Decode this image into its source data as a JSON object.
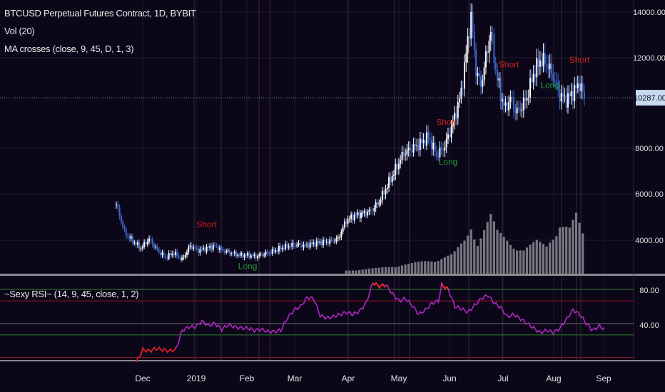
{
  "header": {
    "symbol_line": "BTCUSD Perpetual Futures Contract, 1D, BYBIT",
    "vol_line": "Vol (20)",
    "ma_line": "MA crosses (close, 9, 45, D, 1, 3)"
  },
  "rsi_header": {
    "label": "~Sexy RSI~ (14, 9, 45, close, 1, 2)"
  },
  "colors": {
    "background": "#0c0718",
    "grid": "#1e1a2c",
    "candle_up": "#ffffff",
    "candle_down": "#3b67c9",
    "volume": "#8c8a93",
    "short_signal": "#d21e1e",
    "long_signal": "#1f9a39",
    "rsi_line": "#b026c2",
    "rsi_hot": "#ff2a2a",
    "rsi_cold": "#d21e1e",
    "level_green": "#2c7a2c",
    "level_red": "#9a1822",
    "price_tag": "#c7daf0"
  },
  "chart_data": [
    {
      "type": "candlestick",
      "title": "BTCUSD Perpetual Futures Contract, 1D, BYBIT",
      "x_ticks": [
        "Dec",
        "2019",
        "Feb",
        "Mar",
        "Apr",
        "May",
        "Jun",
        "Jul",
        "Aug",
        "Sep"
      ],
      "y_ticks": [
        "14000.00",
        "12000.00",
        "8000.00",
        "6000.00",
        "4000.00"
      ],
      "last_price_label": "10287.00",
      "last_price": 10287,
      "ylim": [
        2700,
        14500
      ],
      "x_range_days": [
        0,
        297
      ],
      "close_path": [
        [
          0,
          5700
        ],
        [
          5,
          4500
        ],
        [
          10,
          4100
        ],
        [
          15,
          3800
        ],
        [
          20,
          4200
        ],
        [
          25,
          3700
        ],
        [
          30,
          3400
        ],
        [
          35,
          3600
        ],
        [
          40,
          3300
        ],
        [
          45,
          3900
        ],
        [
          50,
          3700
        ],
        [
          55,
          3800
        ],
        [
          60,
          3900
        ],
        [
          65,
          3700
        ],
        [
          70,
          3600
        ],
        [
          75,
          3500
        ],
        [
          80,
          3500
        ],
        [
          85,
          3450
        ],
        [
          90,
          3550
        ],
        [
          95,
          3650
        ],
        [
          100,
          3800
        ],
        [
          105,
          3900
        ],
        [
          110,
          3950
        ],
        [
          115,
          3900
        ],
        [
          120,
          4000
        ],
        [
          125,
          4050
        ],
        [
          130,
          4100
        ],
        [
          135,
          4200
        ],
        [
          140,
          5000
        ],
        [
          145,
          5200
        ],
        [
          150,
          5300
        ],
        [
          155,
          5400
        ],
        [
          160,
          5800
        ],
        [
          165,
          6500
        ],
        [
          170,
          7200
        ],
        [
          175,
          7900
        ],
        [
          180,
          8100
        ],
        [
          185,
          8300
        ],
        [
          190,
          8600
        ],
        [
          195,
          7800
        ],
        [
          200,
          8200
        ],
        [
          205,
          9200
        ],
        [
          210,
          10500
        ],
        [
          213,
          12200
        ],
        [
          216,
          13800
        ],
        [
          219,
          11500
        ],
        [
          222,
          10800
        ],
        [
          225,
          12000
        ],
        [
          228,
          13200
        ],
        [
          231,
          11500
        ],
        [
          234,
          10400
        ],
        [
          237,
          9800
        ],
        [
          240,
          10300
        ],
        [
          243,
          9700
        ],
        [
          246,
          9800
        ],
        [
          250,
          10300
        ],
        [
          254,
          11300
        ],
        [
          258,
          11900
        ],
        [
          262,
          11800
        ],
        [
          266,
          11200
        ],
        [
          270,
          10400
        ],
        [
          274,
          10200
        ],
        [
          278,
          10500
        ],
        [
          282,
          10900
        ],
        [
          285,
          10287
        ]
      ],
      "volume_path": [
        [
          140,
          0.05
        ],
        [
          160,
          0.09
        ],
        [
          180,
          0.16
        ],
        [
          195,
          0.23
        ],
        [
          205,
          0.3
        ],
        [
          213,
          0.55
        ],
        [
          216,
          0.78
        ],
        [
          220,
          0.52
        ],
        [
          228,
          0.9
        ],
        [
          232,
          0.65
        ],
        [
          240,
          0.5
        ],
        [
          248,
          0.38
        ],
        [
          256,
          0.5
        ],
        [
          262,
          0.44
        ],
        [
          270,
          0.82
        ],
        [
          276,
          0.7
        ],
        [
          280,
          0.9
        ],
        [
          285,
          0.55
        ]
      ],
      "signals": [
        {
          "label": "Short",
          "kind": "short",
          "day": 55,
          "price": 4700
        },
        {
          "label": "Long",
          "kind": "long",
          "day": 80,
          "price": 2900
        },
        {
          "label": "Short",
          "kind": "short",
          "day": 201,
          "price": 9100
        },
        {
          "label": "Long",
          "kind": "long",
          "day": 202,
          "price": 7400
        },
        {
          "label": "Short",
          "kind": "short",
          "day": 239,
          "price": 11600
        },
        {
          "label": "Long",
          "kind": "long",
          "day": 264,
          "price": 10700
        },
        {
          "label": "Short",
          "kind": "short",
          "day": 282,
          "price": 11800
        }
      ]
    },
    {
      "type": "line",
      "title": "~Sexy RSI~ (14, 9, 45, close, 1, 2)",
      "y_ticks": [
        "80.00",
        "40.00"
      ],
      "ylim": [
        18,
        92
      ],
      "levels": [
        80,
        70,
        50,
        40,
        20
      ],
      "series": [
        {
          "values": [
            [
              0,
              16
            ],
            [
              4,
              27
            ],
            [
              8,
              26
            ],
            [
              12,
              28
            ],
            [
              16,
              27
            ],
            [
              20,
              26
            ],
            [
              24,
              27
            ],
            [
              28,
              44
            ],
            [
              32,
              47
            ],
            [
              36,
              47
            ],
            [
              40,
              52
            ],
            [
              44,
              48
            ],
            [
              48,
              50
            ],
            [
              52,
              45
            ],
            [
              56,
              49
            ],
            [
              60,
              47
            ],
            [
              64,
              46
            ],
            [
              68,
              46
            ],
            [
              72,
              44
            ],
            [
              76,
              45
            ],
            [
              80,
              43
            ],
            [
              84,
              43
            ],
            [
              88,
              44
            ],
            [
              92,
              55
            ],
            [
              96,
              62
            ],
            [
              100,
              65
            ],
            [
              104,
              73
            ],
            [
              108,
              72
            ],
            [
              112,
              57
            ],
            [
              116,
              55
            ],
            [
              120,
              56
            ],
            [
              124,
              58
            ],
            [
              128,
              60
            ],
            [
              132,
              58
            ],
            [
              136,
              61
            ],
            [
              140,
              68
            ],
            [
              144,
              86
            ],
            [
              148,
              83
            ],
            [
              152,
              84
            ],
            [
              156,
              76
            ],
            [
              160,
              70
            ],
            [
              164,
              72
            ],
            [
              168,
              66
            ],
            [
              172,
              58
            ],
            [
              176,
              62
            ],
            [
              180,
              68
            ],
            [
              184,
              70
            ],
            [
              186,
              84
            ],
            [
              190,
              80
            ],
            [
              194,
              65
            ],
            [
              198,
              63
            ],
            [
              202,
              60
            ],
            [
              206,
              66
            ],
            [
              210,
              72
            ],
            [
              214,
              75
            ],
            [
              218,
              68
            ],
            [
              222,
              64
            ],
            [
              226,
              56
            ],
            [
              230,
              58
            ],
            [
              234,
              54
            ],
            [
              238,
              50
            ],
            [
              242,
              46
            ],
            [
              246,
              42
            ],
            [
              250,
              44
            ],
            [
              254,
              42
            ],
            [
              258,
              46
            ],
            [
              262,
              54
            ],
            [
              266,
              62
            ],
            [
              270,
              58
            ],
            [
              274,
              50
            ],
            [
              278,
              44
            ],
            [
              282,
              48
            ],
            [
              285,
              45
            ]
          ],
          "hot_ranges": [
            [
              0,
              24
            ],
            [
              144,
              152
            ],
            [
              186,
              190
            ]
          ]
        }
      ]
    }
  ]
}
